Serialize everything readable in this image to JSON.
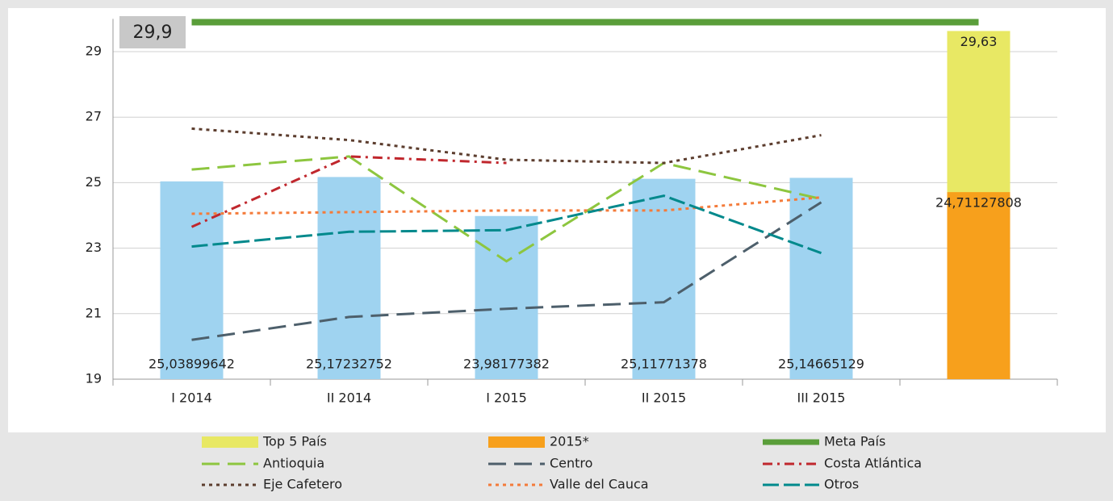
{
  "chart_data": {
    "type": "bar",
    "categories": [
      "I 2014",
      "II 2014",
      "I 2015",
      "II 2015",
      "III 2015",
      null
    ],
    "ylim": [
      19,
      30
    ],
    "yticks": [
      19,
      21,
      23,
      25,
      27,
      29
    ],
    "grid": true,
    "legend": "bottom",
    "series": [
      {
        "type": "bar",
        "color": "#9fd3f0",
        "values": [
          25.03899642,
          25.17232752,
          23.98177382,
          25.11771378,
          25.14665129,
          null
        ],
        "value_labels": [
          "25,03899642",
          "25,17232752",
          "23,98177382",
          "25,11771378",
          "25,14665129",
          null
        ]
      },
      {
        "name": "Top 5 País",
        "type": "bar",
        "color": "#e8e864",
        "values": [
          null,
          null,
          null,
          null,
          null,
          29.63
        ],
        "value_labels": [
          null,
          null,
          null,
          null,
          null,
          "29,63"
        ]
      },
      {
        "name": "2015*",
        "type": "bar",
        "color": "#f7a01c",
        "values": [
          null,
          null,
          null,
          null,
          null,
          24.71127808
        ],
        "value_labels": [
          null,
          null,
          null,
          null,
          null,
          "24,71127808"
        ]
      },
      {
        "name": "Meta País",
        "type": "line",
        "color": "#5a9e3a",
        "dash": "solid",
        "width": 8,
        "values": [
          29.9,
          29.9,
          29.9,
          29.9,
          29.9,
          29.9
        ],
        "value_labels": [
          "29,9",
          null,
          null,
          null,
          null,
          null
        ]
      },
      {
        "name": "Antioquia",
        "type": "line",
        "color": "#8dc63f",
        "dash": "dashed",
        "width": 3,
        "values": [
          25.4,
          25.8,
          22.6,
          25.6,
          24.5,
          null
        ]
      },
      {
        "name": "Centro",
        "type": "line",
        "color": "#4d5f6b",
        "dash": "dashed",
        "width": 3,
        "values": [
          20.2,
          20.9,
          21.15,
          21.35,
          24.4,
          null
        ]
      },
      {
        "name": "Costa Atlántica",
        "type": "line",
        "color": "#c0272d",
        "dash": "dashdot",
        "width": 3,
        "values": [
          23.65,
          25.8,
          25.6,
          null,
          null,
          null
        ]
      },
      {
        "name": "Eje Cafetero",
        "type": "line",
        "color": "#5c3d2e",
        "dash": "dotted",
        "width": 3,
        "values": [
          26.65,
          26.3,
          25.7,
          25.6,
          26.45,
          null
        ]
      },
      {
        "name": "Valle del Cauca",
        "type": "line",
        "color": "#f47b3a",
        "dash": "dotted",
        "width": 3,
        "values": [
          24.05,
          24.1,
          24.15,
          24.15,
          24.55,
          null
        ]
      },
      {
        "name": "Otros",
        "type": "line",
        "color": "#00898c",
        "dash": "longdash",
        "width": 3,
        "values": [
          23.05,
          23.5,
          23.55,
          24.6,
          22.85,
          null
        ]
      }
    ]
  }
}
